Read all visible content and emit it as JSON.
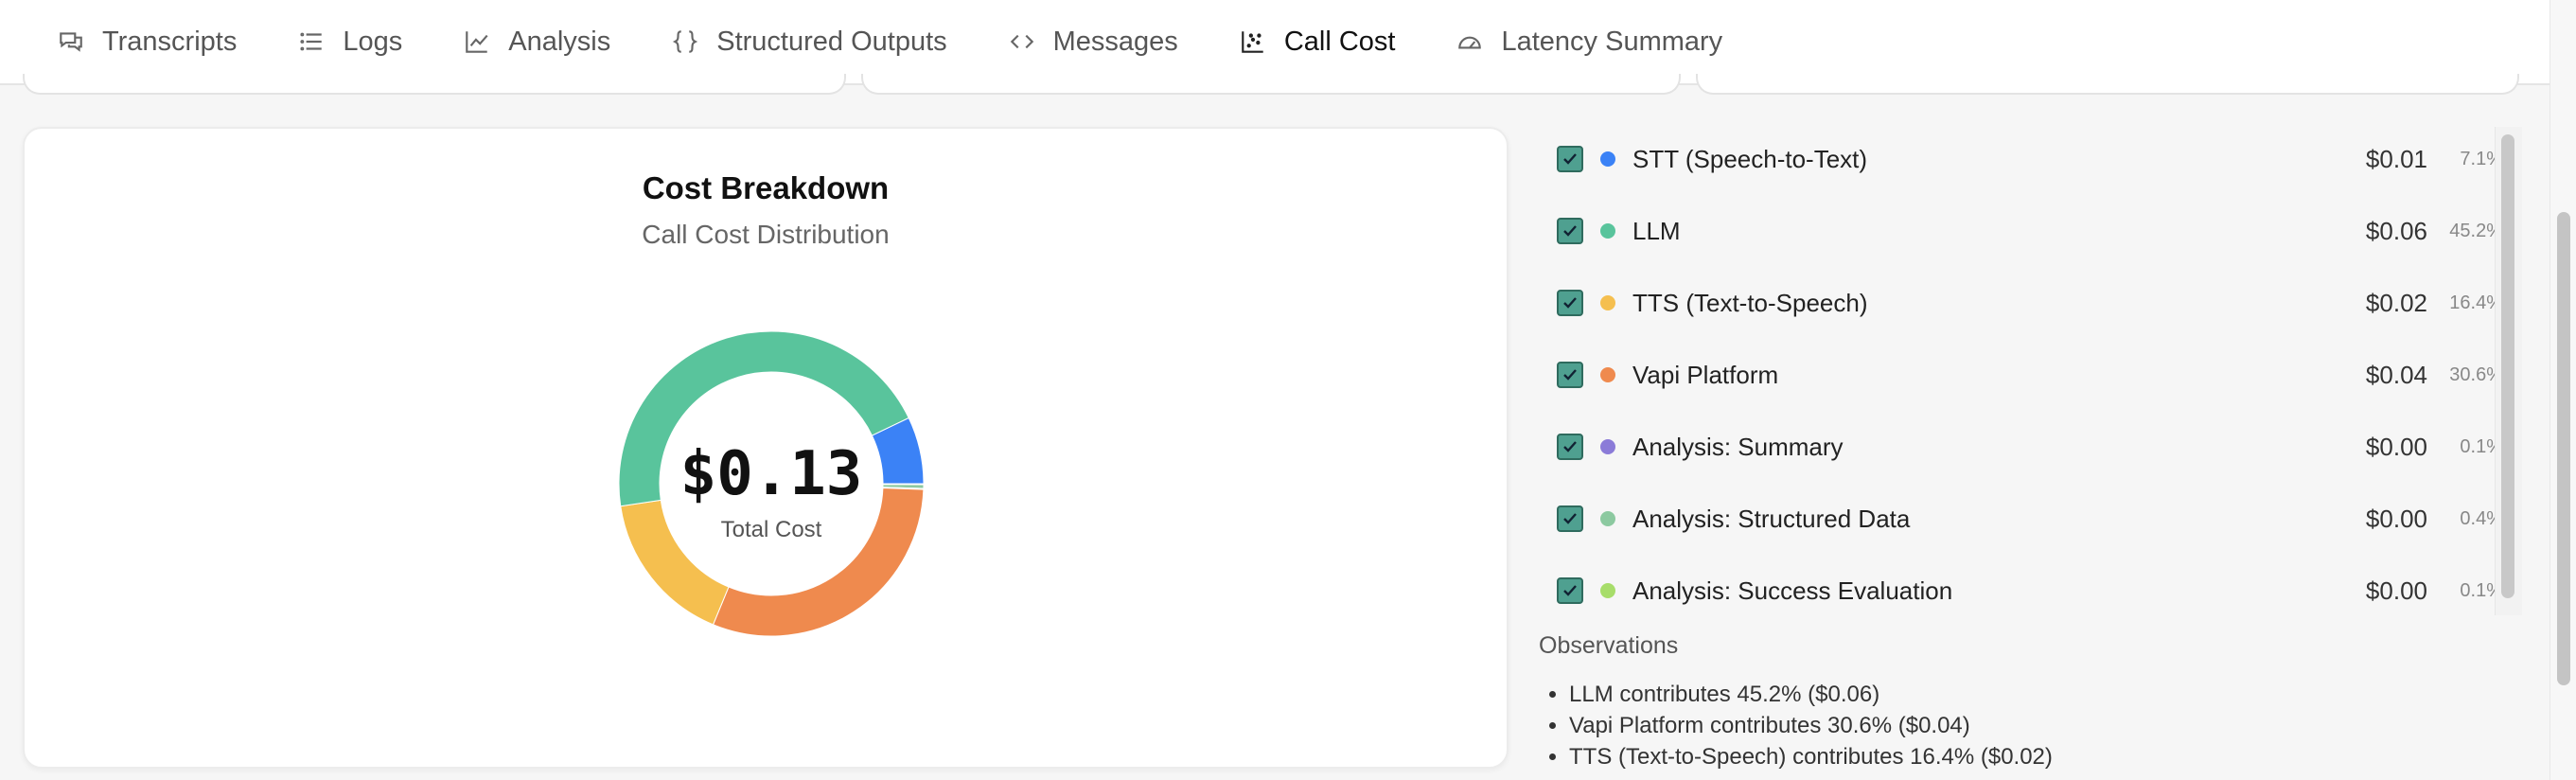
{
  "tabs": [
    {
      "label": "Transcripts",
      "icon": "chat-bubbles-icon"
    },
    {
      "label": "Logs",
      "icon": "list-icon"
    },
    {
      "label": "Analysis",
      "icon": "line-chart-icon"
    },
    {
      "label": "Structured Outputs",
      "icon": "braces-icon"
    },
    {
      "label": "Messages",
      "icon": "code-brackets-icon"
    },
    {
      "label": "Call Cost",
      "icon": "scatter-chart-icon",
      "active": true
    },
    {
      "label": "Latency Summary",
      "icon": "gauge-icon"
    }
  ],
  "chart": {
    "title": "Cost Breakdown",
    "subtitle": "Call Cost Distribution",
    "total_value": "$0.13",
    "total_label": "Total Cost"
  },
  "legend": [
    {
      "label": "STT (Speech-to-Text)",
      "cost": "$0.01",
      "pct": "7.1%",
      "color": "#3b82f6"
    },
    {
      "label": "LLM",
      "cost": "$0.06",
      "pct": "45.2%",
      "color": "#59c49c"
    },
    {
      "label": "TTS (Text-to-Speech)",
      "cost": "$0.02",
      "pct": "16.4%",
      "color": "#f5bf4f"
    },
    {
      "label": "Vapi Platform",
      "cost": "$0.04",
      "pct": "30.6%",
      "color": "#ef8a4e"
    },
    {
      "label": "Analysis: Summary",
      "cost": "$0.00",
      "pct": "0.1%",
      "color": "#8b7bd8"
    },
    {
      "label": "Analysis: Structured Data",
      "cost": "$0.00",
      "pct": "0.4%",
      "color": "#8cc9a0"
    },
    {
      "label": "Analysis: Success Evaluation",
      "cost": "$0.00",
      "pct": "0.1%",
      "color": "#a7dd6a"
    }
  ],
  "observations": {
    "title": "Observations",
    "items": [
      "LLM contributes 45.2% ($0.06)",
      "Vapi Platform contributes 30.6% ($0.04)",
      "TTS (Text-to-Speech) contributes 16.4% ($0.02)"
    ]
  },
  "chart_data": {
    "type": "pie",
    "title": "Cost Breakdown",
    "subtitle": "Call Cost Distribution",
    "categories": [
      "STT (Speech-to-Text)",
      "LLM",
      "TTS (Text-to-Speech)",
      "Vapi Platform",
      "Analysis: Summary",
      "Analysis: Structured Data",
      "Analysis: Success Evaluation"
    ],
    "values": [
      7.1,
      45.2,
      16.4,
      30.6,
      0.1,
      0.4,
      0.1
    ],
    "colors": [
      "#3b82f6",
      "#59c49c",
      "#f5bf4f",
      "#ef8a4e",
      "#8b7bd8",
      "#8cc9a0",
      "#a7dd6a"
    ]
  }
}
